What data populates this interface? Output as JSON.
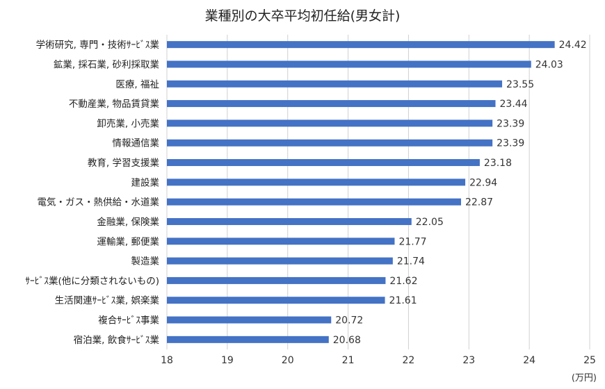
{
  "chart_data": {
    "type": "bar",
    "orientation": "horizontal",
    "title": "業種別の大卒平均初任給(男女計)",
    "unit": "(万円)",
    "xlim": [
      18,
      25
    ],
    "xticks": [
      18,
      19,
      20,
      21,
      22,
      23,
      24,
      25
    ],
    "grid": true,
    "bar_color": "#4472c4",
    "categories": [
      "学術研究, 専門・技術ｻｰﾋﾞｽ業",
      "鉱業, 採石業, 砂利採取業",
      "医療, 福祉",
      "不動産業, 物品賃貸業",
      "卸売業, 小売業",
      "情報通信業",
      "教育, 学習支援業",
      "建設業",
      "電気・ガス・熱供給・水道業",
      "金融業, 保険業",
      "運輸業, 郵便業",
      "製造業",
      "ｻｰﾋﾞｽ業(他に分類されないもの)",
      "生活関連ｻｰﾋﾞｽ業, 娯楽業",
      "複合ｻｰﾋﾞｽ事業",
      "宿泊業, 飲食ｻｰﾋﾞｽ業"
    ],
    "values": [
      24.42,
      24.03,
      23.55,
      23.44,
      23.39,
      23.39,
      23.18,
      22.94,
      22.87,
      22.05,
      21.77,
      21.74,
      21.62,
      21.61,
      20.72,
      20.68
    ]
  }
}
